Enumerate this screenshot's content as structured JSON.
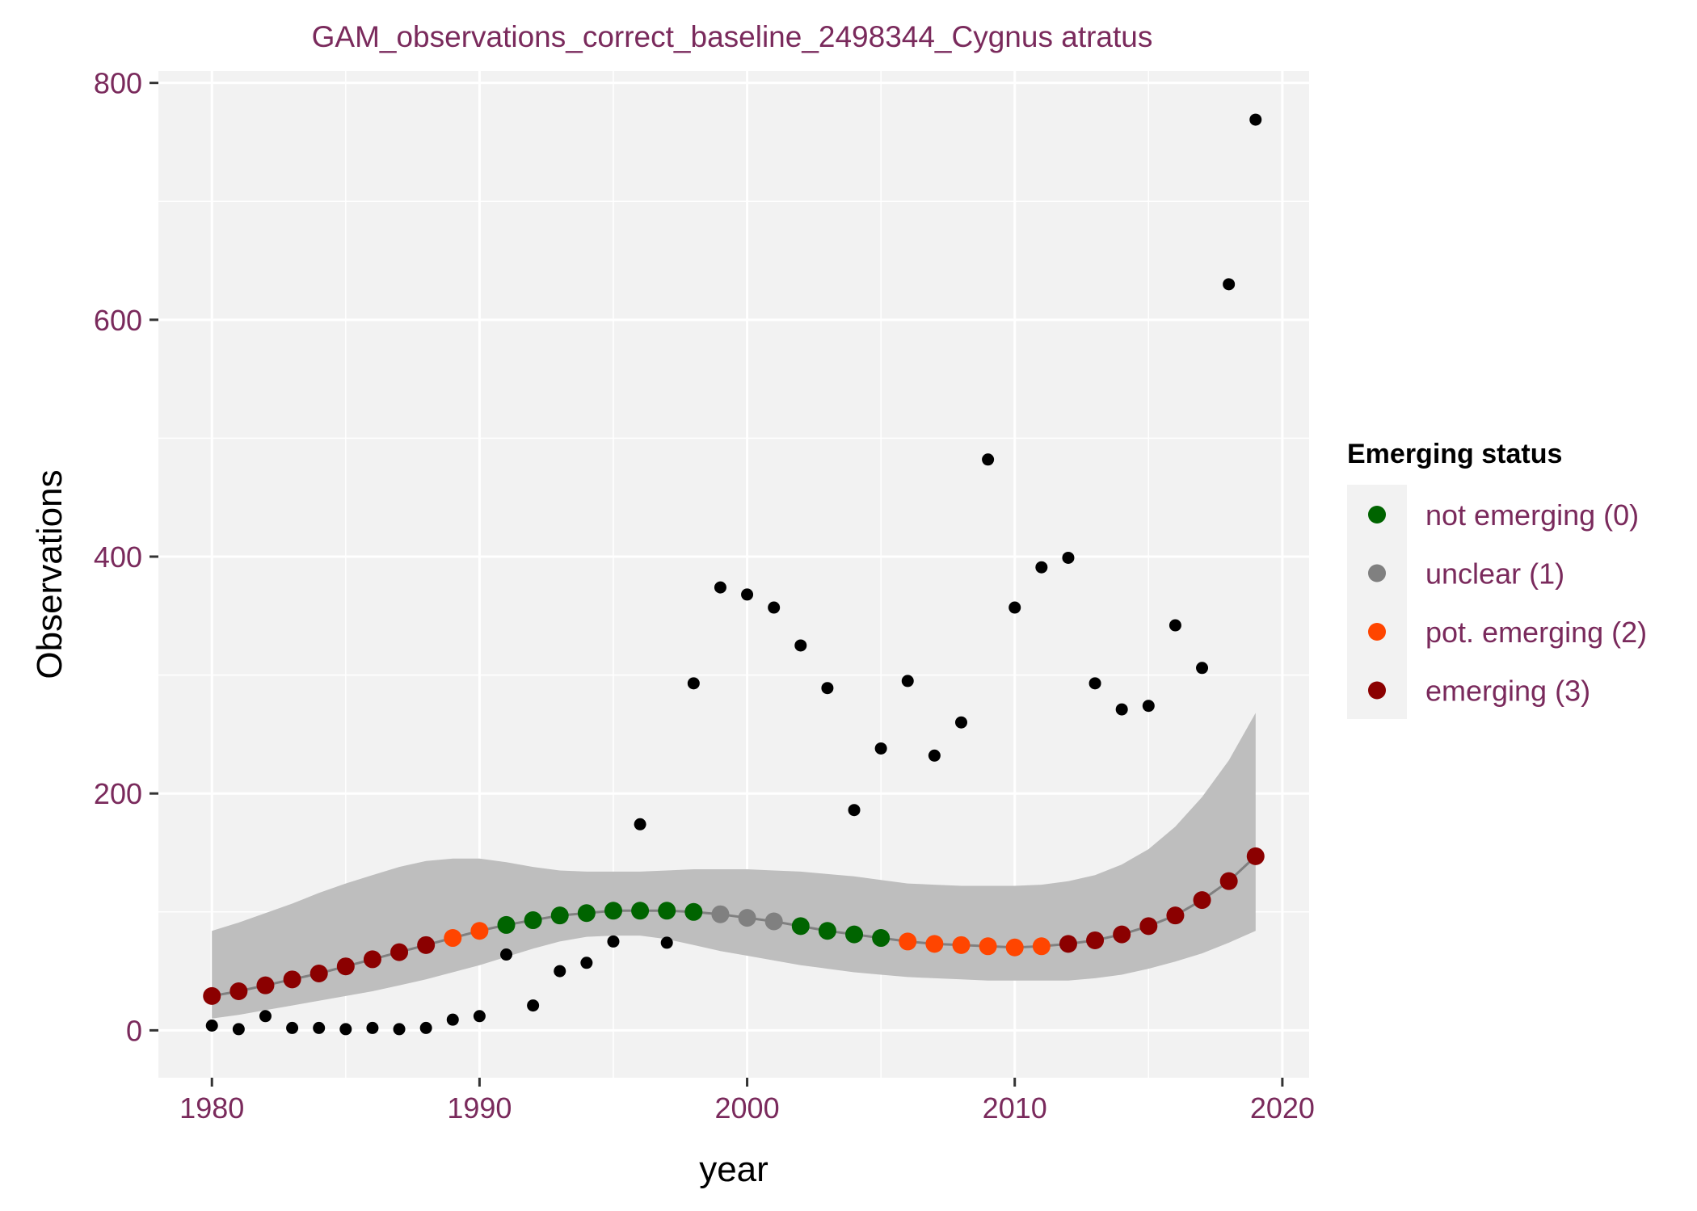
{
  "chart_data": {
    "type": "scatter",
    "title": "GAM_observations_correct_baseline_2498344_Cygnus atratus",
    "xlabel": "year",
    "ylabel": "Observations",
    "xlim": [
      1978,
      2021
    ],
    "ylim": [
      -40,
      810
    ],
    "x_ticks": [
      1980,
      1990,
      2000,
      2010,
      2020
    ],
    "y_ticks": [
      0,
      200,
      400,
      600,
      800
    ],
    "grid": true,
    "legend": {
      "title": "Emerging status",
      "position": "right",
      "entries": [
        {
          "key": "0",
          "label": "not emerging (0)",
          "color": "#006400"
        },
        {
          "key": "1",
          "label": "unclear (1)",
          "color": "#808080"
        },
        {
          "key": "2",
          "label": "pot. emerging (2)",
          "color": "#ff4500"
        },
        {
          "key": "3",
          "label": "emerging (3)",
          "color": "#8b0000"
        }
      ]
    },
    "observations": {
      "x": [
        1980,
        1981,
        1982,
        1983,
        1984,
        1985,
        1986,
        1987,
        1988,
        1989,
        1990,
        1991,
        1992,
        1993,
        1994,
        1995,
        1996,
        1997,
        1998,
        1999,
        2000,
        2001,
        2002,
        2003,
        2004,
        2005,
        2006,
        2007,
        2008,
        2009,
        2010,
        2011,
        2012,
        2013,
        2014,
        2015,
        2016,
        2017,
        2018,
        2019
      ],
      "y": [
        4,
        1,
        12,
        2,
        2,
        1,
        2,
        1,
        2,
        9,
        12,
        64,
        21,
        50,
        57,
        75,
        174,
        74,
        293,
        374,
        368,
        357,
        325,
        289,
        186,
        238,
        295,
        232,
        260,
        482,
        357,
        391,
        399,
        293,
        271,
        274,
        342,
        306,
        630,
        769
      ],
      "color": "#000000"
    },
    "gam_fit": {
      "x": [
        1980,
        1981,
        1982,
        1983,
        1984,
        1985,
        1986,
        1987,
        1988,
        1989,
        1990,
        1991,
        1992,
        1993,
        1994,
        1995,
        1996,
        1997,
        1998,
        1999,
        2000,
        2001,
        2002,
        2003,
        2004,
        2005,
        2006,
        2007,
        2008,
        2009,
        2010,
        2011,
        2012,
        2013,
        2014,
        2015,
        2016,
        2017,
        2018,
        2019
      ],
      "y": [
        29,
        33,
        38,
        43,
        48,
        54,
        60,
        66,
        72,
        78,
        84,
        89,
        93,
        97,
        99,
        101,
        101,
        101,
        100,
        98,
        95,
        92,
        88,
        84,
        81,
        78,
        75,
        73,
        72,
        71,
        70,
        71,
        73,
        76,
        81,
        88,
        97,
        110,
        126,
        147
      ],
      "status": [
        3,
        3,
        3,
        3,
        3,
        3,
        3,
        3,
        3,
        2,
        2,
        0,
        0,
        0,
        0,
        0,
        0,
        0,
        0,
        1,
        1,
        1,
        0,
        0,
        0,
        0,
        2,
        2,
        2,
        2,
        2,
        2,
        3,
        3,
        3,
        3,
        3,
        3,
        3,
        3
      ],
      "lower": [
        10,
        13,
        17,
        21,
        25,
        29,
        33,
        38,
        43,
        49,
        55,
        62,
        69,
        75,
        79,
        80,
        80,
        77,
        72,
        67,
        63,
        59,
        55,
        52,
        49,
        47,
        45,
        44,
        43,
        42,
        42,
        42,
        42,
        44,
        47,
        52,
        58,
        65,
        74,
        84
      ],
      "upper": [
        84,
        91,
        99,
        107,
        116,
        124,
        131,
        138,
        143,
        145,
        145,
        142,
        138,
        135,
        134,
        134,
        134,
        135,
        136,
        136,
        136,
        135,
        134,
        132,
        130,
        127,
        124,
        123,
        122,
        122,
        122,
        123,
        126,
        131,
        140,
        153,
        172,
        197,
        228,
        268
      ],
      "line_color": "#808080",
      "band_color": "#bebebe"
    }
  }
}
